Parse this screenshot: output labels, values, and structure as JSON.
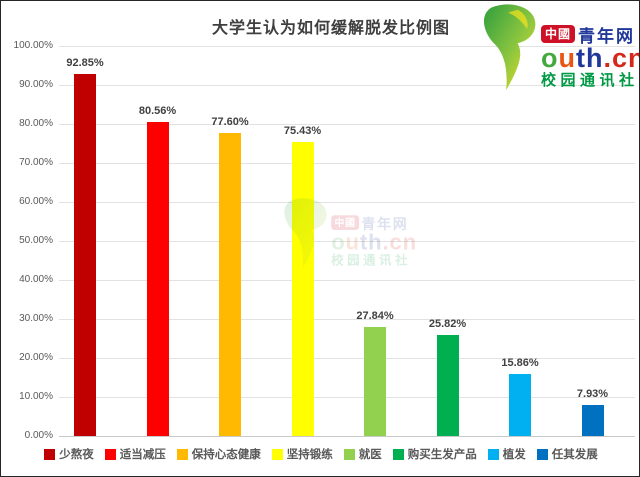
{
  "chart_data": {
    "type": "bar",
    "title": "大学生认为如何缓解脱发比例图",
    "categories": [
      "少熬夜",
      "适当减压",
      "保持心态健康",
      "坚持锻练",
      "就医",
      "购买生发产品",
      "植发",
      "任其发展"
    ],
    "values": [
      92.85,
      80.56,
      77.6,
      75.43,
      27.84,
      25.82,
      15.86,
      7.93
    ],
    "value_labels": [
      "92.85%",
      "80.56%",
      "77.60%",
      "75.43%",
      "27.84%",
      "25.82%",
      "15.86%",
      "7.93%"
    ],
    "colors": [
      "#c00000",
      "#fe0000",
      "#ffb900",
      "#ffff00",
      "#92d050",
      "#00b050",
      "#00b0f0",
      "#0070c0"
    ],
    "xlabel": "",
    "ylabel": "",
    "ylim": [
      0,
      100
    ],
    "y_ticks": [
      "100.00%",
      "90.00%",
      "80.00%",
      "70.00%",
      "60.00%",
      "50.00%",
      "40.00%",
      "30.00%",
      "20.00%",
      "10.00%",
      "0.00%"
    ],
    "grid": true,
    "legend_position": "bottom"
  },
  "logo": {
    "badge": "中國",
    "brand_suffix": "青年网",
    "domain": "outh.cn",
    "domain_letters": [
      {
        "ch": "o",
        "color": "#44a93c"
      },
      {
        "ch": "u",
        "color": "#e95513"
      },
      {
        "ch": "t",
        "color": "#20379b"
      },
      {
        "ch": "h",
        "color": "#20379b"
      },
      {
        "ch": ".",
        "color": "#d5281b"
      },
      {
        "ch": "c",
        "color": "#d5281b"
      },
      {
        "ch": "n",
        "color": "#d5281b"
      }
    ],
    "subtitle": "校园通讯社",
    "badge_color": "#ce1126",
    "brand_color": "#20379b",
    "subtitle_color": "#009944"
  }
}
